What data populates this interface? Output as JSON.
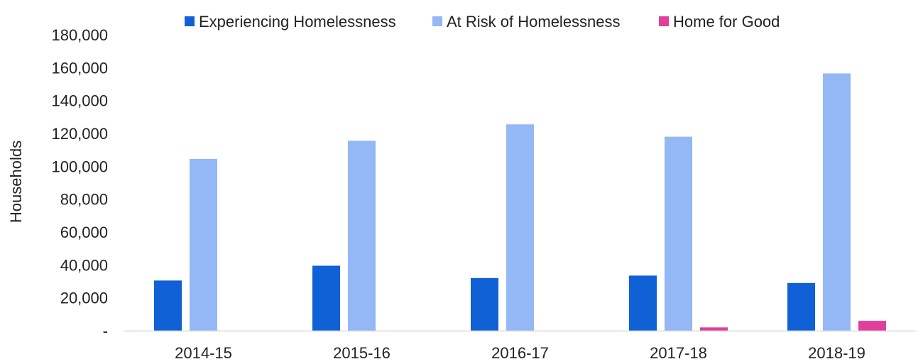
{
  "chart_data": {
    "type": "bar",
    "title": "",
    "xlabel": "",
    "ylabel": "Households",
    "ylim": [
      0,
      180000
    ],
    "y_ticks": [
      {
        "value": 0,
        "label": "-"
      },
      {
        "value": 20000,
        "label": "20,000"
      },
      {
        "value": 40000,
        "label": "40,000"
      },
      {
        "value": 60000,
        "label": "60,000"
      },
      {
        "value": 80000,
        "label": "80,000"
      },
      {
        "value": 100000,
        "label": "100,000"
      },
      {
        "value": 120000,
        "label": "120,000"
      },
      {
        "value": 140000,
        "label": "140,000"
      },
      {
        "value": 160000,
        "label": "160,000"
      },
      {
        "value": 180000,
        "label": "180,000"
      }
    ],
    "categories": [
      "2014-15",
      "2015-16",
      "2016-17",
      "2017-18",
      "2018-19"
    ],
    "series": [
      {
        "name": "Experiencing Homelessness",
        "color": "#1060D6",
        "values": [
          30500,
          39500,
          32000,
          33500,
          29000
        ]
      },
      {
        "name": "At Risk of Homelessness",
        "color": "#94B8F6",
        "values": [
          104500,
          115500,
          125500,
          118000,
          156500
        ]
      },
      {
        "name": "Home for Good",
        "color": "#E0409A",
        "values": [
          0,
          0,
          0,
          2000,
          6000
        ]
      }
    ],
    "legend_position": "top",
    "grid": false
  }
}
